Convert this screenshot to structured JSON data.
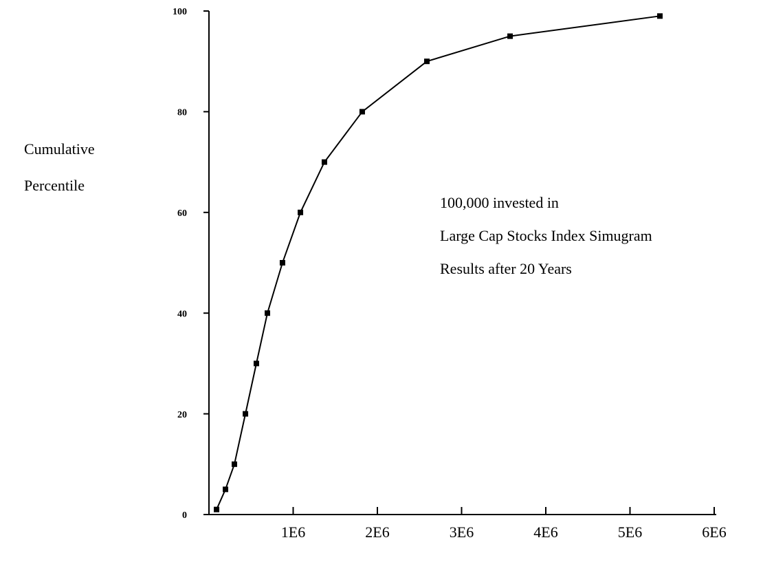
{
  "chart_data": {
    "type": "line",
    "ylabel": [
      "Cumulative",
      "Percentile"
    ],
    "annotation": [
      "100,000 invested in",
      "Large Cap Stocks  Index Simugram",
      "Results after  20 Years"
    ],
    "series": [
      {
        "color": "#000000",
        "x": [
          90000,
          196000,
          302000,
          433000,
          563000,
          694000,
          873000,
          1086000,
          1371000,
          1820000,
          2588000,
          3576000,
          5355000
        ],
        "values": [
          1,
          5,
          10,
          20,
          30,
          40,
          50,
          60,
          70,
          80,
          90,
          95,
          99
        ]
      }
    ],
    "xlim": [
      0,
      6000000
    ],
    "xticks": [
      {
        "value": 1000000,
        "label": "1E6"
      },
      {
        "value": 2000000,
        "label": "2E6"
      },
      {
        "value": 3000000,
        "label": "3E6"
      },
      {
        "value": 4000000,
        "label": "4E6"
      },
      {
        "value": 5000000,
        "label": "5E6"
      },
      {
        "value": 6000000,
        "label": "6E6"
      }
    ],
    "ylim": [
      0,
      100
    ],
    "yticks": [
      0,
      20,
      40,
      60,
      80,
      100
    ],
    "markers": true
  }
}
